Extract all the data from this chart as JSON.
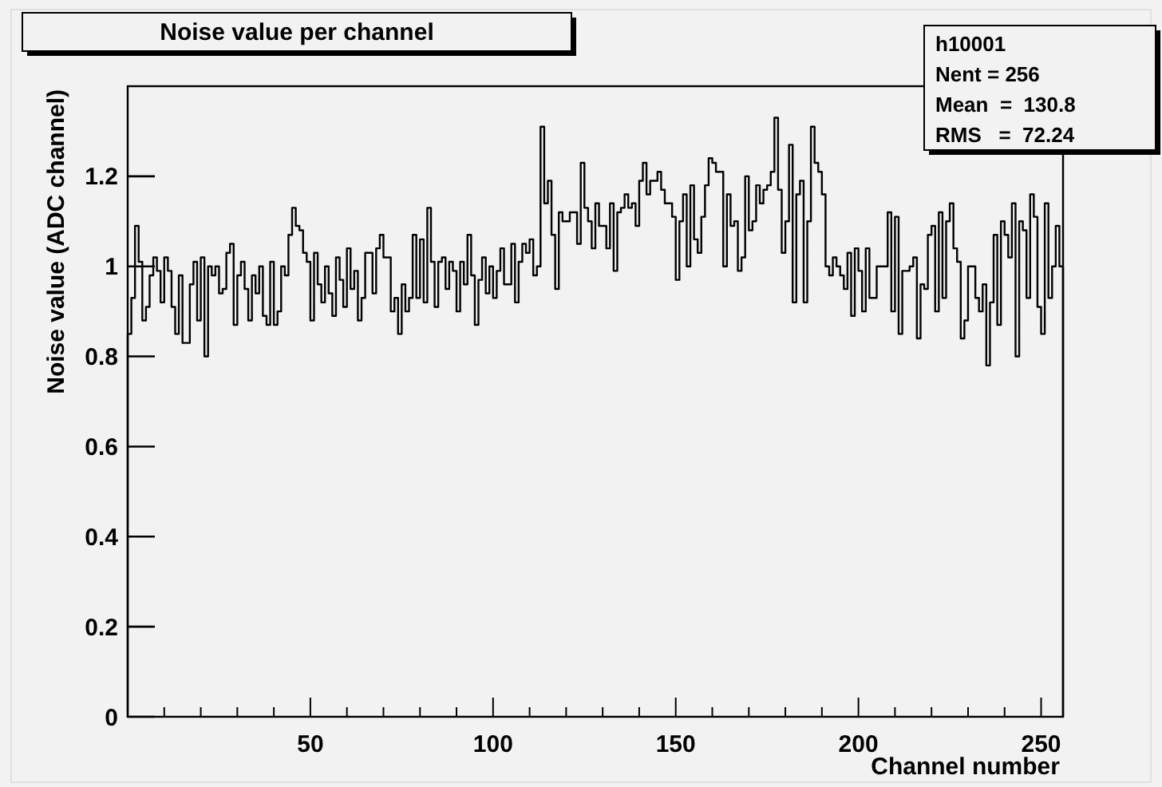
{
  "chart_data": {
    "type": "histogram",
    "title": "Noise value per channel",
    "xlabel": "Channel number",
    "ylabel": "Noise value (ADC channel)",
    "annotations": [
      "h10001",
      "Nent = 256",
      "Mean  =  130.8",
      "RMS   =  72.24"
    ],
    "color": "#000000",
    "grid": false,
    "legend": false,
    "xlim": [
      0,
      256
    ],
    "ylim": [
      0,
      1.4
    ],
    "xticks": [
      {
        "value": 10,
        "label": null
      },
      {
        "value": 20,
        "label": null
      },
      {
        "value": 30,
        "label": null
      },
      {
        "value": 40,
        "label": null
      },
      50,
      {
        "value": 60,
        "label": null
      },
      {
        "value": 70,
        "label": null
      },
      {
        "value": 80,
        "label": null
      },
      {
        "value": 90,
        "label": null
      },
      100,
      {
        "value": 110,
        "label": null
      },
      {
        "value": 120,
        "label": null
      },
      {
        "value": 130,
        "label": null
      },
      {
        "value": 140,
        "label": null
      },
      150,
      {
        "value": 160,
        "label": null
      },
      {
        "value": 170,
        "label": null
      },
      {
        "value": 180,
        "label": null
      },
      {
        "value": 190,
        "label": null
      },
      200,
      {
        "value": 210,
        "label": null
      },
      {
        "value": 220,
        "label": null
      },
      {
        "value": 230,
        "label": null
      },
      {
        "value": 240,
        "label": null
      },
      250
    ],
    "yticks": [
      0,
      0.2,
      0.4,
      0.6,
      0.8,
      1,
      1.2
    ],
    "bins": [
      0,
      1,
      2,
      3,
      4,
      5,
      6,
      7,
      8,
      9,
      10,
      11,
      12,
      13,
      14,
      15,
      16,
      17,
      18,
      19,
      20,
      21,
      22,
      23,
      24,
      25,
      26,
      27,
      28,
      29,
      30,
      31,
      32,
      33,
      34,
      35,
      36,
      37,
      38,
      39,
      40,
      41,
      42,
      43,
      44,
      45,
      46,
      47,
      48,
      49,
      50,
      51,
      52,
      53,
      54,
      55,
      56,
      57,
      58,
      59,
      60,
      61,
      62,
      63,
      64,
      65,
      66,
      67,
      68,
      69,
      70,
      71,
      72,
      73,
      74,
      75,
      76,
      77,
      78,
      79,
      80,
      81,
      82,
      83,
      84,
      85,
      86,
      87,
      88,
      89,
      90,
      91,
      92,
      93,
      94,
      95,
      96,
      97,
      98,
      99,
      100,
      101,
      102,
      103,
      104,
      105,
      106,
      107,
      108,
      109,
      110,
      111,
      112,
      113,
      114,
      115,
      116,
      117,
      118,
      119,
      120,
      121,
      122,
      123,
      124,
      125,
      126,
      127,
      128,
      129,
      130,
      131,
      132,
      133,
      134,
      135,
      136,
      137,
      138,
      139,
      140,
      141,
      142,
      143,
      144,
      145,
      146,
      147,
      148,
      149,
      150,
      151,
      152,
      153,
      154,
      155,
      156,
      157,
      158,
      159,
      160,
      161,
      162,
      163,
      164,
      165,
      166,
      167,
      168,
      169,
      170,
      171,
      172,
      173,
      174,
      175,
      176,
      177,
      178,
      179,
      180,
      181,
      182,
      183,
      184,
      185,
      186,
      187,
      188,
      189,
      190,
      191,
      192,
      193,
      194,
      195,
      196,
      197,
      198,
      199,
      200,
      201,
      202,
      203,
      204,
      205,
      206,
      207,
      208,
      209,
      210,
      211,
      212,
      213,
      214,
      215,
      216,
      217,
      218,
      219,
      220,
      221,
      222,
      223,
      224,
      225,
      226,
      227,
      228,
      229,
      230,
      231,
      232,
      233,
      234,
      235,
      236,
      237,
      238,
      239,
      240,
      241,
      242,
      243,
      244,
      245,
      246,
      247,
      248,
      249,
      250,
      251,
      252,
      253,
      254,
      255,
      256
    ],
    "values": [
      0.85,
      0.93,
      1.09,
      1.01,
      0.88,
      0.91,
      0.98,
      1.02,
      0.99,
      0.92,
      1.02,
      0.99,
      0.91,
      0.85,
      0.98,
      0.83,
      0.83,
      0.96,
      1.01,
      0.88,
      1.02,
      0.8,
      1.0,
      0.98,
      1.0,
      0.94,
      0.95,
      1.03,
      1.05,
      0.87,
      0.98,
      1.01,
      0.95,
      0.88,
      0.98,
      0.94,
      1.0,
      0.89,
      0.87,
      1.01,
      0.87,
      0.9,
      1.0,
      0.98,
      1.07,
      1.13,
      1.09,
      1.08,
      1.03,
      1.01,
      0.88,
      1.03,
      0.96,
      0.92,
      1.0,
      0.94,
      0.89,
      1.02,
      0.97,
      0.91,
      1.04,
      0.95,
      0.99,
      0.88,
      0.93,
      1.03,
      1.03,
      0.94,
      1.04,
      1.07,
      1.02,
      1.02,
      0.9,
      0.93,
      0.85,
      0.96,
      0.9,
      0.93,
      1.07,
      0.93,
      1.06,
      0.92,
      1.13,
      1.01,
      0.91,
      1.01,
      1.02,
      0.95,
      1.01,
      0.99,
      0.9,
      1.01,
      0.96,
      1.07,
      0.98,
      0.87,
      0.97,
      1.02,
      0.94,
      1.0,
      0.93,
      0.99,
      1.04,
      0.96,
      0.96,
      1.05,
      0.92,
      1.01,
      1.05,
      1.03,
      1.06,
      0.98,
      1.0,
      1.31,
      1.14,
      1.19,
      1.07,
      0.95,
      1.12,
      1.1,
      1.1,
      1.12,
      1.12,
      1.05,
      1.23,
      1.13,
      1.1,
      1.04,
      1.14,
      1.09,
      1.09,
      1.04,
      1.14,
      0.99,
      1.12,
      1.13,
      1.16,
      1.13,
      1.14,
      1.09,
      1.19,
      1.23,
      1.16,
      1.19,
      1.19,
      1.21,
      1.17,
      1.14,
      1.14,
      1.11,
      0.97,
      1.1,
      1.16,
      1.0,
      1.18,
      1.06,
      1.03,
      1.11,
      1.18,
      1.24,
      1.23,
      1.21,
      1.21,
      1.0,
      1.16,
      1.09,
      1.1,
      0.99,
      1.02,
      1.2,
      1.08,
      1.1,
      1.18,
      1.14,
      1.17,
      1.18,
      1.21,
      1.33,
      1.17,
      1.03,
      1.1,
      1.27,
      0.92,
      1.16,
      1.19,
      0.92,
      1.1,
      1.31,
      1.23,
      1.21,
      1.16,
      1.0,
      0.98,
      1.02,
      1.0,
      0.98,
      0.95,
      1.03,
      0.89,
      1.04,
      0.99,
      0.9,
      1.04,
      0.93,
      0.93,
      1.0,
      1.0,
      1.0,
      1.12,
      0.9,
      1.11,
      0.85,
      0.99,
      0.99,
      1.0,
      1.02,
      0.84,
      0.96,
      0.95,
      1.07,
      1.09,
      0.9,
      1.12,
      0.93,
      1.1,
      1.14,
      1.04,
      1.01,
      0.84,
      0.88,
      1.0,
      1.0,
      0.93,
      0.9,
      0.96,
      0.78,
      0.92,
      1.07,
      0.87,
      1.1,
      1.07,
      1.02,
      1.14,
      0.8,
      1.1,
      1.08,
      0.93,
      1.16,
      1.11,
      0.91,
      0.85,
      1.14,
      0.93,
      1.0,
      1.09,
      1.0
    ]
  }
}
